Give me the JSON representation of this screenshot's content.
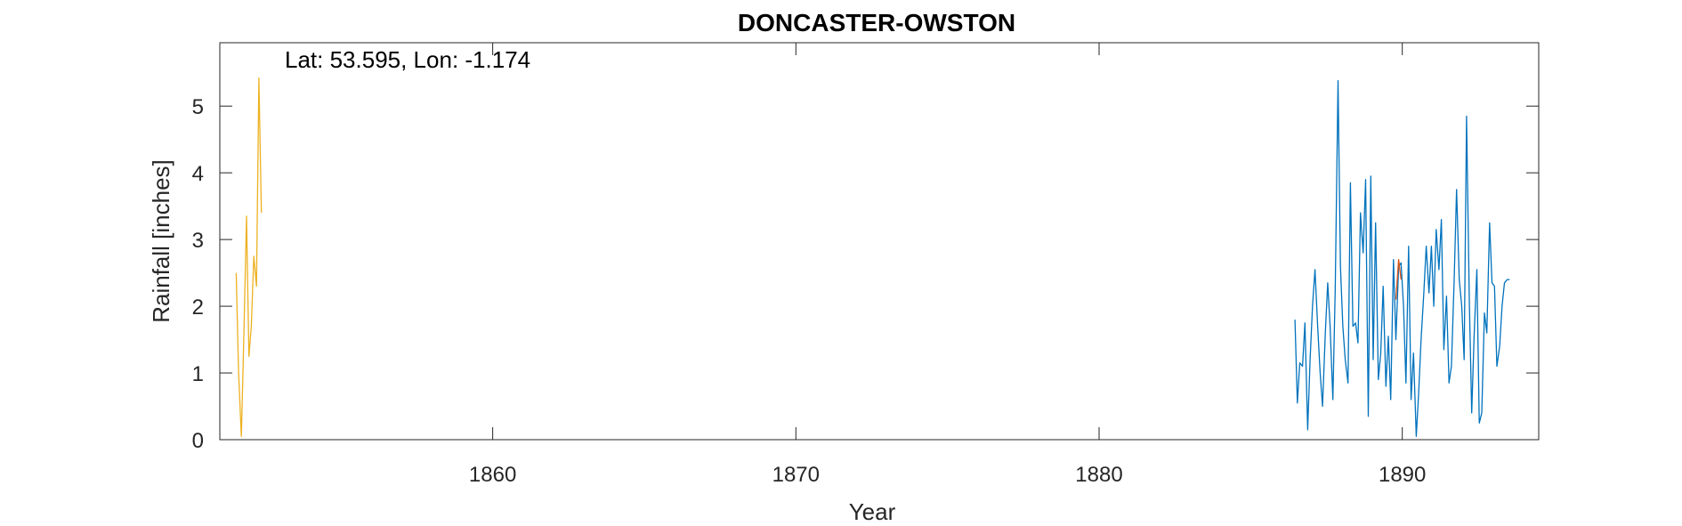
{
  "chart_data": {
    "type": "line",
    "title": "DONCASTER-OWSTON",
    "xlabel": "Year",
    "ylabel": "Rainfall [inches]",
    "annotation": "Lat: 53.595, Lon: -1.174",
    "xlim": [
      1851,
      1894.5
    ],
    "ylim": [
      0,
      5.95
    ],
    "xticks": [
      1860,
      1870,
      1880,
      1890
    ],
    "yticks": [
      0,
      1,
      2,
      3,
      4,
      5
    ],
    "grid": false,
    "legend": "none",
    "series": [
      {
        "color": "#EDB120",
        "x": [
          1851.54,
          1851.62,
          1851.71,
          1851.79,
          1851.88,
          1851.96,
          1852.04,
          1852.12,
          1852.21,
          1852.29,
          1852.37,
          1852.46,
          1852.54
        ],
        "y": [
          2.5,
          1.0,
          0.05,
          1.5,
          3.35,
          1.25,
          1.7,
          2.75,
          2.3,
          5.42,
          3.4,
          null,
          3.45
        ]
      },
      {
        "color": "#0072BD",
        "x": [
          1886.46,
          1886.54,
          1886.62,
          1886.71,
          1886.79,
          1886.88,
          1886.96,
          1887.04,
          1887.12,
          1887.21,
          1887.29,
          1887.37,
          1887.46,
          1887.54,
          1887.62,
          1887.71,
          1887.79,
          1887.88,
          1887.96,
          1888.04,
          1888.12,
          1888.21,
          1888.29,
          1888.37,
          1888.46,
          1888.54,
          1888.62,
          1888.71,
          1888.79,
          1888.88,
          1888.96,
          1889.04,
          1889.12,
          1889.21,
          1889.29,
          1889.37,
          1889.46,
          1889.54,
          1889.62,
          1889.71,
          1889.79,
          1889.88,
          1889.96,
          1890.04,
          1890.12,
          1890.21,
          1890.29,
          1890.37,
          1890.46,
          1890.54,
          1890.62,
          1890.71,
          1890.79,
          1890.88,
          1890.96,
          1891.04,
          1891.12,
          1891.21,
          1891.29,
          1891.37,
          1891.46,
          1891.54,
          1891.62,
          1891.71,
          1891.79,
          1891.88,
          1891.96,
          1892.04,
          1892.12,
          1892.21,
          1892.29,
          1892.37,
          1892.46,
          1892.54,
          1892.62,
          1892.71,
          1892.79,
          1892.88,
          1892.96,
          1893.04,
          1893.12,
          1893.21,
          1893.29,
          1893.37,
          1893.46,
          1893.54
        ],
        "y": [
          1.8,
          0.55,
          1.15,
          1.1,
          1.75,
          0.15,
          1.2,
          2.0,
          2.55,
          1.7,
          1.0,
          0.5,
          1.6,
          2.35,
          1.7,
          0.6,
          2.3,
          5.38,
          2.6,
          1.7,
          1.2,
          0.85,
          3.85,
          1.7,
          1.75,
          1.45,
          3.4,
          2.8,
          3.9,
          0.35,
          3.95,
          1.2,
          3.25,
          0.9,
          1.3,
          2.3,
          0.8,
          1.55,
          0.6,
          2.7,
          1.5,
          2.6,
          2.65,
          2.0,
          0.85,
          2.9,
          0.6,
          1.3,
          0.05,
          0.7,
          1.5,
          2.2,
          2.9,
          2.2,
          2.9,
          2.0,
          3.15,
          2.55,
          3.3,
          1.35,
          2.15,
          0.85,
          1.1,
          2.35,
          3.75,
          2.4,
          2.0,
          1.2,
          4.85,
          2.1,
          0.4,
          1.55,
          2.55,
          0.25,
          0.4,
          1.9,
          1.6,
          3.25,
          2.35,
          2.3,
          1.1,
          1.4,
          2.0,
          2.35,
          2.4,
          2.4
        ]
      },
      {
        "color": "#D95319",
        "x": [
          1889.79,
          1889.88,
          1889.96
        ],
        "y": [
          2.1,
          2.7,
          2.4
        ]
      }
    ]
  }
}
